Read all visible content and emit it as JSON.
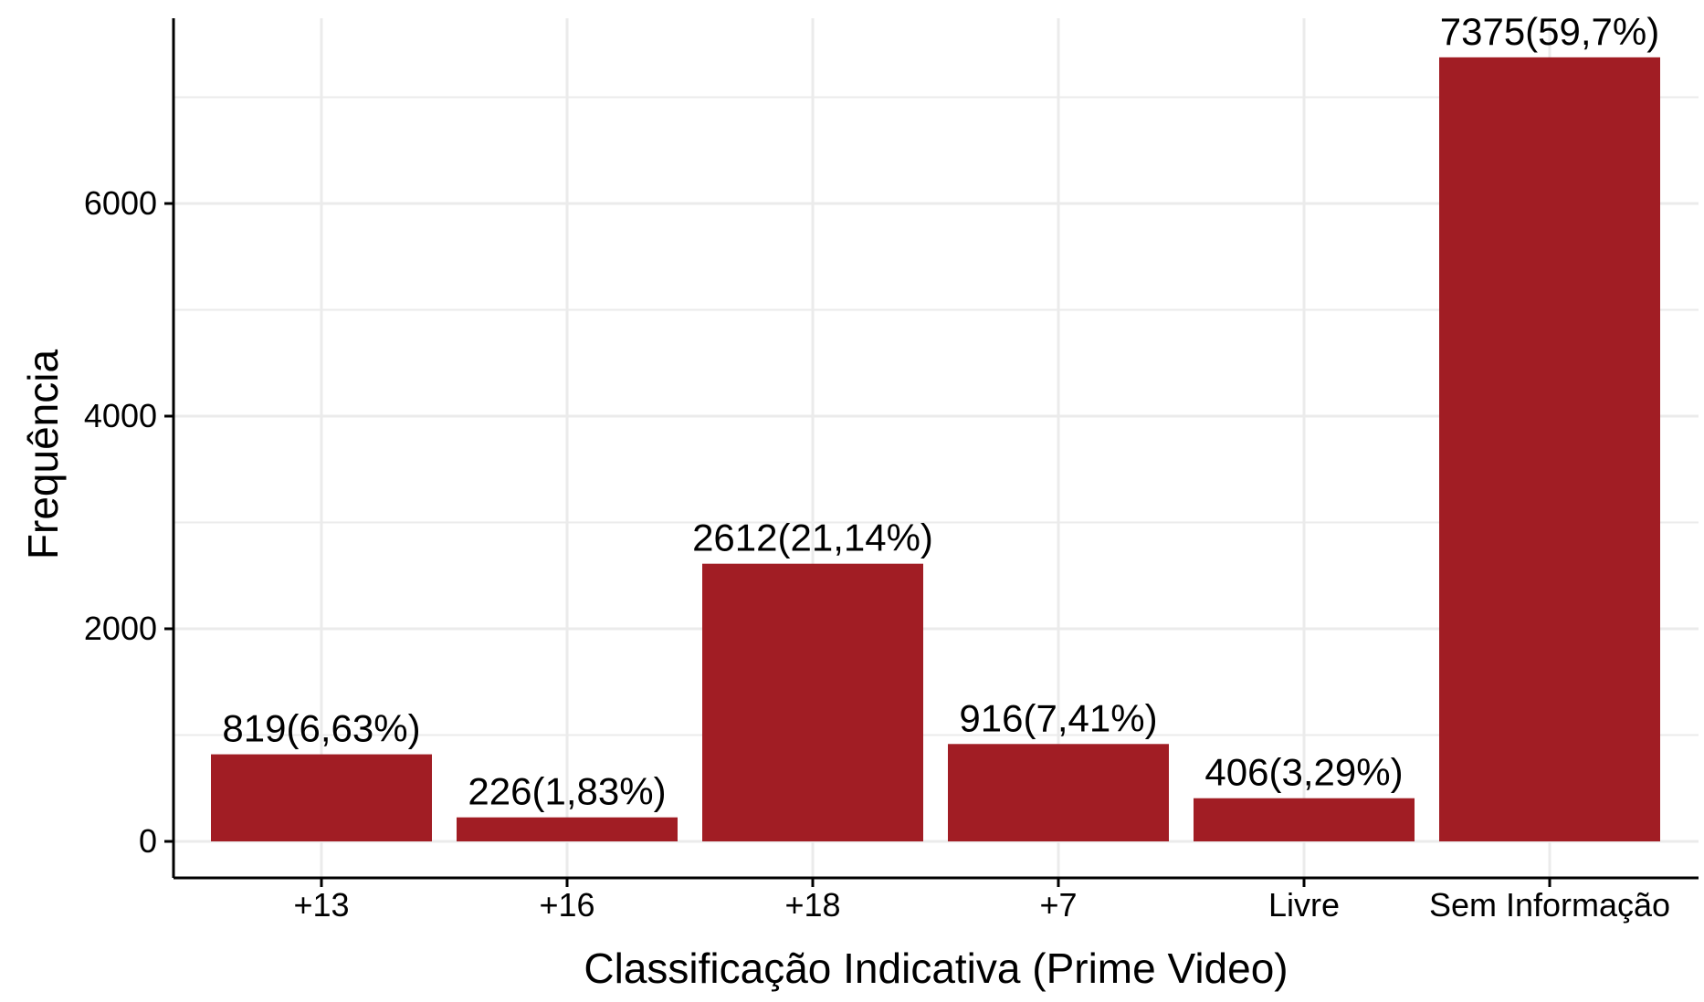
{
  "chart_data": {
    "type": "bar",
    "title": "",
    "xlabel": "Classificação Indicativa (Prime Video)",
    "ylabel": "Frequência",
    "categories": [
      "+13",
      "+16",
      "+18",
      "+7",
      "Livre",
      "Sem Informação"
    ],
    "values": [
      819,
      226,
      2612,
      916,
      406,
      7375
    ],
    "data_labels": [
      "819(6,63%)",
      "226(1,83%)",
      "2612(21,14%)",
      "916(7,41%)",
      "406(3,29%)",
      "7375(59,7%)"
    ],
    "ylim": [
      0,
      7375
    ],
    "yticks": [
      0,
      2000,
      4000,
      6000
    ],
    "ytick_labels": [
      "0",
      "2000",
      "4000",
      "6000"
    ],
    "grid": true,
    "legend": "none",
    "bar_color": "#a11d24",
    "grid_color": "#ebebeb"
  }
}
